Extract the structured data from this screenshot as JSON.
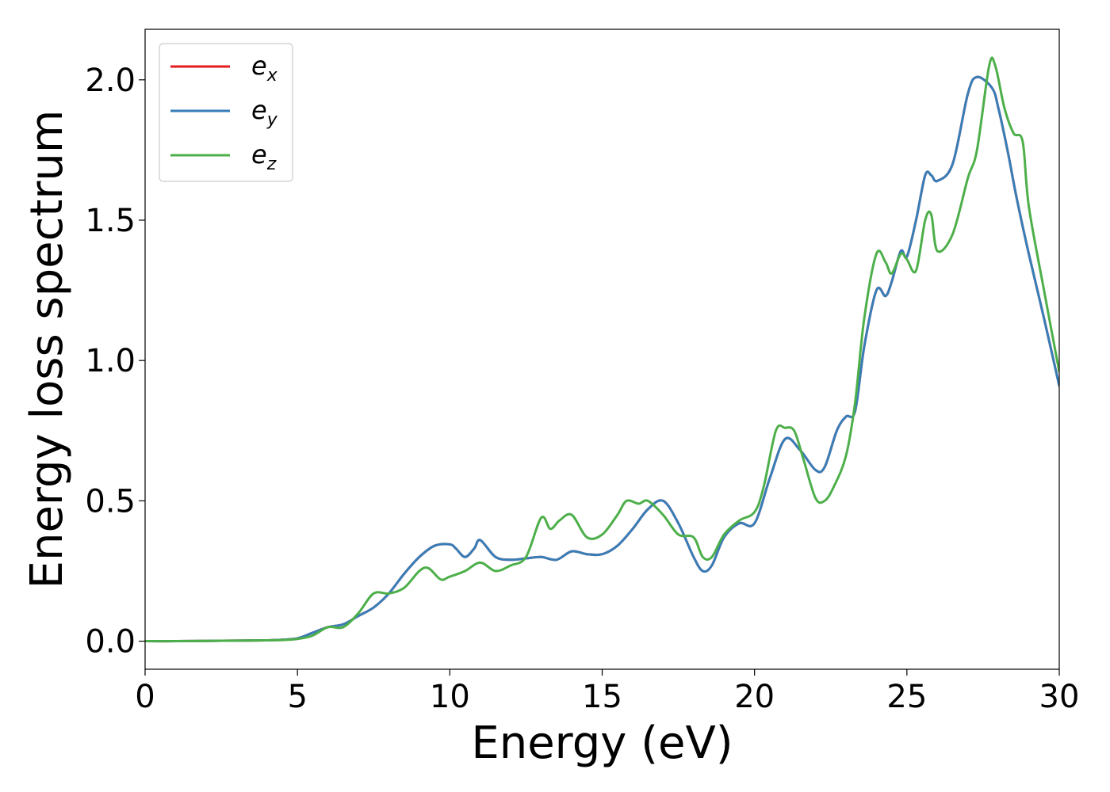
{
  "chart_data": {
    "type": "line",
    "xlabel": "Energy (eV)",
    "ylabel": "Energy loss spectrum",
    "xlim": [
      0,
      30
    ],
    "ylim": [
      -0.1,
      2.18
    ],
    "xticks": [
      "0",
      "5",
      "10",
      "15",
      "20",
      "25",
      "30"
    ],
    "yticks": [
      "0.0",
      "0.5",
      "1.0",
      "1.5",
      "2.0"
    ],
    "grid": false,
    "legend_position": "top-left",
    "colors": {
      "ex": "#e41a1c",
      "ey": "#377eb8",
      "ez": "#4daf4a"
    },
    "series": [
      {
        "name": "e",
        "sub": "x",
        "color": "#e41a1c",
        "x": [
          0,
          1,
          2,
          3,
          4,
          4.5,
          5,
          5.5,
          6,
          6.5,
          7,
          7.5,
          8,
          8.5,
          9,
          9.5,
          10,
          10.2,
          10.5,
          10.8,
          11,
          11.5,
          12,
          12.5,
          13,
          13.5,
          14,
          14.5,
          15,
          15.5,
          16,
          16.5,
          17,
          17.5,
          18,
          18.3,
          18.6,
          19,
          19.5,
          20,
          20.5,
          21,
          21.5,
          22,
          22.3,
          22.7,
          23,
          23.3,
          23.6,
          24,
          24.3,
          24.5,
          24.8,
          25,
          25.3,
          25.6,
          25.8,
          26,
          26.5,
          27,
          27.3,
          27.8,
          28,
          28.3,
          28.6,
          29,
          29.5,
          30
        ],
        "y": [
          0,
          0,
          0.001,
          0.002,
          0.003,
          0.005,
          0.01,
          0.03,
          0.05,
          0.06,
          0.09,
          0.12,
          0.17,
          0.24,
          0.3,
          0.34,
          0.345,
          0.33,
          0.3,
          0.33,
          0.36,
          0.3,
          0.29,
          0.295,
          0.3,
          0.29,
          0.32,
          0.31,
          0.31,
          0.34,
          0.4,
          0.47,
          0.5,
          0.42,
          0.3,
          0.25,
          0.27,
          0.37,
          0.42,
          0.42,
          0.58,
          0.72,
          0.68,
          0.61,
          0.62,
          0.75,
          0.8,
          0.82,
          1.05,
          1.25,
          1.23,
          1.28,
          1.39,
          1.37,
          1.5,
          1.66,
          1.66,
          1.64,
          1.7,
          1.95,
          2.01,
          1.97,
          1.9,
          1.75,
          1.58,
          1.38,
          1.15,
          0.91
        ]
      },
      {
        "name": "e",
        "sub": "y",
        "color": "#377eb8",
        "x": [
          0,
          1,
          2,
          3,
          4,
          4.5,
          5,
          5.5,
          6,
          6.5,
          7,
          7.5,
          8,
          8.5,
          9,
          9.5,
          10,
          10.2,
          10.5,
          10.8,
          11,
          11.5,
          12,
          12.5,
          13,
          13.5,
          14,
          14.5,
          15,
          15.5,
          16,
          16.5,
          17,
          17.5,
          18,
          18.3,
          18.6,
          19,
          19.5,
          20,
          20.5,
          21,
          21.5,
          22,
          22.3,
          22.7,
          23,
          23.3,
          23.6,
          24,
          24.3,
          24.5,
          24.8,
          25,
          25.3,
          25.6,
          25.8,
          26,
          26.5,
          27,
          27.3,
          27.8,
          28,
          28.3,
          28.6,
          29,
          29.5,
          30
        ],
        "y": [
          0,
          0,
          0.001,
          0.002,
          0.003,
          0.005,
          0.01,
          0.03,
          0.05,
          0.06,
          0.09,
          0.12,
          0.17,
          0.24,
          0.3,
          0.34,
          0.345,
          0.33,
          0.3,
          0.33,
          0.36,
          0.3,
          0.29,
          0.295,
          0.3,
          0.29,
          0.32,
          0.31,
          0.31,
          0.34,
          0.4,
          0.47,
          0.5,
          0.42,
          0.3,
          0.25,
          0.27,
          0.37,
          0.42,
          0.42,
          0.58,
          0.72,
          0.68,
          0.61,
          0.62,
          0.75,
          0.8,
          0.82,
          1.05,
          1.25,
          1.23,
          1.28,
          1.39,
          1.37,
          1.5,
          1.66,
          1.66,
          1.64,
          1.7,
          1.95,
          2.01,
          1.97,
          1.9,
          1.75,
          1.58,
          1.38,
          1.15,
          0.91
        ]
      },
      {
        "name": "e",
        "sub": "z",
        "color": "#4daf4a",
        "x": [
          0,
          1,
          2,
          3,
          4,
          4.5,
          5,
          5.5,
          6,
          6.5,
          7,
          7.5,
          8,
          8.5,
          9,
          9.3,
          9.7,
          10,
          10.5,
          11,
          11.5,
          12,
          12.5,
          13,
          13.3,
          13.6,
          14,
          14.5,
          15,
          15.5,
          15.8,
          16.2,
          16.5,
          17,
          17.5,
          18,
          18.3,
          18.6,
          19,
          19.5,
          20,
          20.3,
          20.7,
          21,
          21.3,
          21.6,
          22,
          22.3,
          22.6,
          23,
          23.3,
          23.6,
          24,
          24.3,
          24.5,
          24.8,
          25,
          25.3,
          25.6,
          25.8,
          26,
          26.5,
          27,
          27.3,
          27.7,
          27.9,
          28.2,
          28.5,
          28.8,
          29,
          29.5,
          30
        ],
        "y": [
          0,
          0,
          0.001,
          0.002,
          0.003,
          0.004,
          0.008,
          0.02,
          0.05,
          0.05,
          0.1,
          0.17,
          0.17,
          0.19,
          0.25,
          0.26,
          0.22,
          0.23,
          0.25,
          0.28,
          0.25,
          0.27,
          0.3,
          0.44,
          0.4,
          0.43,
          0.45,
          0.37,
          0.38,
          0.45,
          0.5,
          0.49,
          0.5,
          0.45,
          0.38,
          0.37,
          0.3,
          0.3,
          0.38,
          0.43,
          0.46,
          0.55,
          0.75,
          0.76,
          0.75,
          0.65,
          0.51,
          0.5,
          0.55,
          0.66,
          0.85,
          1.15,
          1.38,
          1.35,
          1.31,
          1.38,
          1.36,
          1.32,
          1.5,
          1.52,
          1.39,
          1.45,
          1.65,
          1.75,
          2.05,
          2.05,
          1.9,
          1.81,
          1.78,
          1.55,
          1.25,
          0.96
        ]
      }
    ]
  }
}
